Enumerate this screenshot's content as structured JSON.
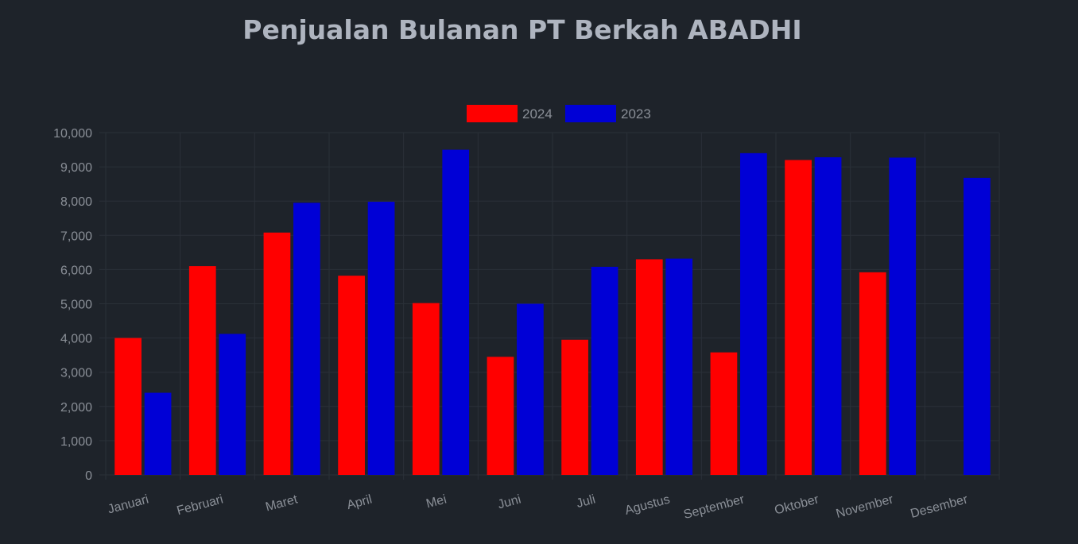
{
  "chart_data": {
    "type": "bar",
    "title": "Penjualan Bulanan PT Berkah ABADHI",
    "categories": [
      "Januari",
      "Februari",
      "Maret",
      "April",
      "Mei",
      "Juni",
      "Juli",
      "Agustus",
      "September",
      "Oktober",
      "November",
      "Desember"
    ],
    "series": [
      {
        "name": "2024",
        "color": "#ff0000",
        "values": [
          4000,
          6100,
          7080,
          5820,
          5020,
          3450,
          3950,
          6300,
          3580,
          9200,
          5920,
          null
        ]
      },
      {
        "name": "2023",
        "color": "#0000d6",
        "values": [
          2400,
          4120,
          7950,
          7980,
          9500,
          5000,
          6080,
          6320,
          9400,
          9280,
          9270,
          8680
        ]
      }
    ],
    "ylim": [
      0,
      10000
    ],
    "yticks": [
      "0",
      "1,000",
      "2,000",
      "3,000",
      "4,000",
      "5,000",
      "6,000",
      "7,000",
      "8,000",
      "9,000",
      "10,000"
    ],
    "legend_position": "top-center",
    "grid": true
  }
}
